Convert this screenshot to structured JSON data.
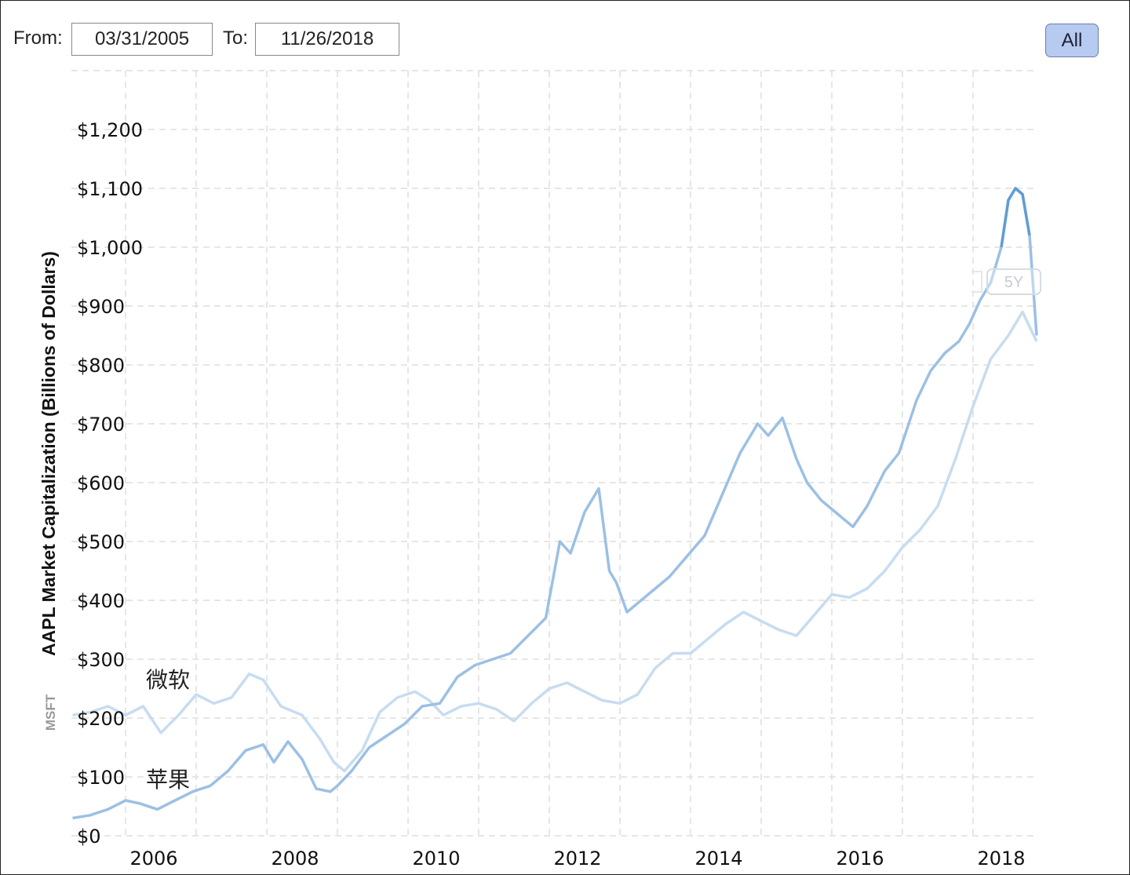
{
  "controls": {
    "from_label": "From:",
    "from_value": "03/31/2005",
    "to_label": "To:",
    "to_value": "11/26/2018",
    "range_button": "All"
  },
  "overlay": {
    "five_year_button": "5Y",
    "label_msft": "微软",
    "label_aapl": "苹果",
    "secondary_axis_label": "MSFT"
  },
  "colors": {
    "aapl_line": "#9cc0e4",
    "aapl_recent": "#5f9dd3",
    "msft_line": "#c7dcf0",
    "grid": "#dedede"
  },
  "chart_data": {
    "type": "line",
    "ylabel": "AAPL Market Capitalization (Billions of Dollars)",
    "ylim": [
      0,
      1200
    ],
    "y_ticks": [
      "$0",
      "$100",
      "$200",
      "$300",
      "$400",
      "$500",
      "$600",
      "$700",
      "$800",
      "$900",
      "$1,000",
      "$1,100",
      "$1,200"
    ],
    "y_tick_values": [
      0,
      100,
      200,
      300,
      400,
      500,
      600,
      700,
      800,
      900,
      1000,
      1100,
      1200
    ],
    "x_ticks": [
      "2006",
      "2008",
      "2010",
      "2012",
      "2014",
      "2016",
      "2018"
    ],
    "x_tick_values": [
      2006,
      2008,
      2010,
      2012,
      2014,
      2016,
      2018
    ],
    "xlim": [
      2005.25,
      2018.9
    ],
    "grid": true,
    "series": [
      {
        "name": "苹果",
        "x": [
          2005.25,
          2005.5,
          2005.75,
          2006.0,
          2006.2,
          2006.45,
          2006.7,
          2006.95,
          2007.2,
          2007.45,
          2007.7,
          2007.95,
          2008.1,
          2008.3,
          2008.5,
          2008.7,
          2008.9,
          2009.0,
          2009.2,
          2009.45,
          2009.7,
          2009.95,
          2010.2,
          2010.45,
          2010.7,
          2010.95,
          2011.2,
          2011.45,
          2011.7,
          2011.95,
          2012.15,
          2012.3,
          2012.5,
          2012.7,
          2012.85,
          2012.95,
          2013.1,
          2013.3,
          2013.5,
          2013.7,
          2013.95,
          2014.2,
          2014.45,
          2014.7,
          2014.95,
          2015.1,
          2015.3,
          2015.5,
          2015.65,
          2015.85,
          2016.05,
          2016.3,
          2016.5,
          2016.75,
          2016.95,
          2017.2,
          2017.4,
          2017.6,
          2017.8,
          2017.95,
          2018.1,
          2018.25,
          2018.4,
          2018.5,
          2018.6,
          2018.7,
          2018.8,
          2018.9
        ],
        "values": [
          30,
          35,
          45,
          60,
          55,
          45,
          60,
          75,
          85,
          110,
          145,
          155,
          125,
          160,
          130,
          80,
          75,
          85,
          110,
          150,
          170,
          190,
          220,
          225,
          270,
          290,
          300,
          310,
          340,
          370,
          500,
          480,
          550,
          590,
          450,
          430,
          380,
          400,
          420,
          440,
          475,
          510,
          580,
          650,
          700,
          680,
          710,
          640,
          600,
          570,
          550,
          525,
          560,
          620,
          650,
          740,
          790,
          820,
          840,
          870,
          910,
          940,
          1000,
          1080,
          1100,
          1090,
          1020,
          850
        ]
      },
      {
        "name": "微软",
        "x": [
          2005.25,
          2005.5,
          2005.75,
          2006.0,
          2006.25,
          2006.5,
          2006.75,
          2007.0,
          2007.25,
          2007.5,
          2007.75,
          2007.95,
          2008.2,
          2008.5,
          2008.75,
          2008.95,
          2009.1,
          2009.35,
          2009.6,
          2009.85,
          2010.1,
          2010.3,
          2010.5,
          2010.75,
          2011.0,
          2011.25,
          2011.5,
          2011.75,
          2012.0,
          2012.25,
          2012.5,
          2012.75,
          2013.0,
          2013.25,
          2013.5,
          2013.75,
          2014.0,
          2014.25,
          2014.5,
          2014.75,
          2015.0,
          2015.25,
          2015.5,
          2015.75,
          2016.0,
          2016.25,
          2016.5,
          2016.75,
          2017.0,
          2017.25,
          2017.5,
          2017.75,
          2018.0,
          2018.25,
          2018.5,
          2018.7,
          2018.9
        ],
        "values": [
          205,
          210,
          220,
          205,
          220,
          175,
          205,
          240,
          225,
          235,
          275,
          265,
          220,
          205,
          165,
          125,
          110,
          145,
          210,
          235,
          245,
          230,
          205,
          220,
          225,
          215,
          195,
          225,
          250,
          260,
          245,
          230,
          225,
          240,
          285,
          310,
          310,
          335,
          360,
          380,
          365,
          350,
          340,
          375,
          410,
          405,
          420,
          450,
          490,
          520,
          560,
          640,
          730,
          810,
          850,
          890,
          840
        ]
      }
    ]
  }
}
